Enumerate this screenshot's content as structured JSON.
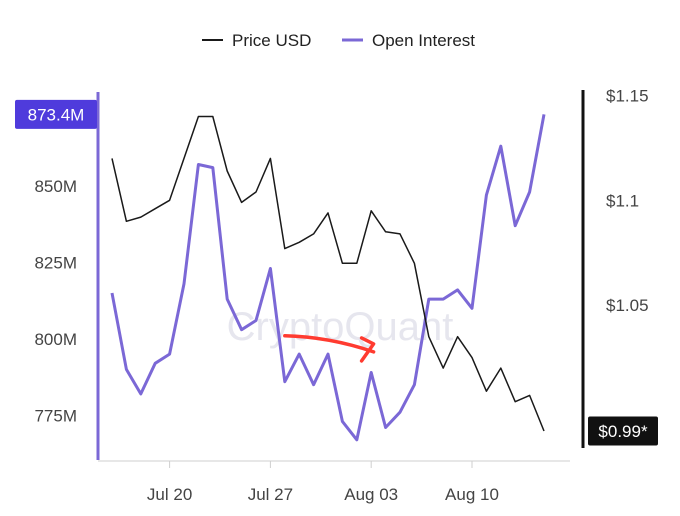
{
  "watermark": "CryptoQuant",
  "chart_data": {
    "type": "line",
    "x": [
      "Jul 16",
      "Jul 17",
      "Jul 18",
      "Jul 19",
      "Jul 20",
      "Jul 21",
      "Jul 22",
      "Jul 23",
      "Jul 24",
      "Jul 25",
      "Jul 26",
      "Jul 27",
      "Jul 28",
      "Jul 29",
      "Jul 30",
      "Jul 31",
      "Aug 01",
      "Aug 02",
      "Aug 03",
      "Aug 04",
      "Aug 05",
      "Aug 06",
      "Aug 07",
      "Aug 08",
      "Aug 09",
      "Aug 10",
      "Aug 11",
      "Aug 12",
      "Aug 13",
      "Aug 14",
      "Aug 15"
    ],
    "x_ticks": [
      {
        "date": "Jul 20",
        "label": "Jul 20"
      },
      {
        "date": "Jul 27",
        "label": "Jul 27"
      },
      {
        "date": "Aug 03",
        "label": "Aug 03"
      },
      {
        "date": "Aug 10",
        "label": "Aug 10"
      }
    ],
    "series": [
      {
        "name": "Price USD",
        "axis": "right",
        "color": "#1a1a1a",
        "values": [
          1.12,
          1.09,
          1.092,
          1.096,
          1.1,
          1.12,
          1.14,
          1.14,
          1.114,
          1.099,
          1.104,
          1.12,
          1.077,
          1.08,
          1.084,
          1.094,
          1.07,
          1.07,
          1.095,
          1.085,
          1.084,
          1.07,
          1.035,
          1.02,
          1.035,
          1.025,
          1.009,
          1.02,
          1.004,
          1.007,
          0.99
        ]
      },
      {
        "name": "Open Interest",
        "axis": "left",
        "color": "#7b68d6",
        "values": [
          815,
          790,
          782,
          792,
          795,
          818,
          857,
          856,
          813,
          803,
          806,
          823,
          786,
          795,
          785,
          795,
          773,
          767,
          789,
          771,
          776,
          785,
          813,
          813,
          816,
          810,
          847,
          863,
          837,
          848,
          873.4
        ]
      }
    ],
    "left_axis": {
      "ticks": [
        "775M",
        "800M",
        "825M",
        "850M"
      ],
      "tick_values": [
        775,
        800,
        825,
        850
      ],
      "range": [
        763,
        883
      ],
      "badge": "873.4M",
      "badge_value": 873.4
    },
    "right_axis": {
      "ticks": [
        "$1.15",
        "$1.1",
        "$1.05"
      ],
      "tick_values": [
        1.15,
        1.1,
        1.05
      ],
      "range": [
        0.98,
        1.155
      ],
      "badge": "$0.99*",
      "badge_value": 0.99
    },
    "legend": {
      "position": "top-center",
      "items": [
        "Price USD",
        "Open Interest"
      ]
    },
    "grid": false,
    "annotation": {
      "type": "arrow",
      "color": "#ff3b30",
      "from": {
        "x": "Jul 28",
        "y": 801
      },
      "to": {
        "x": "Aug 04",
        "y": 799
      }
    }
  }
}
